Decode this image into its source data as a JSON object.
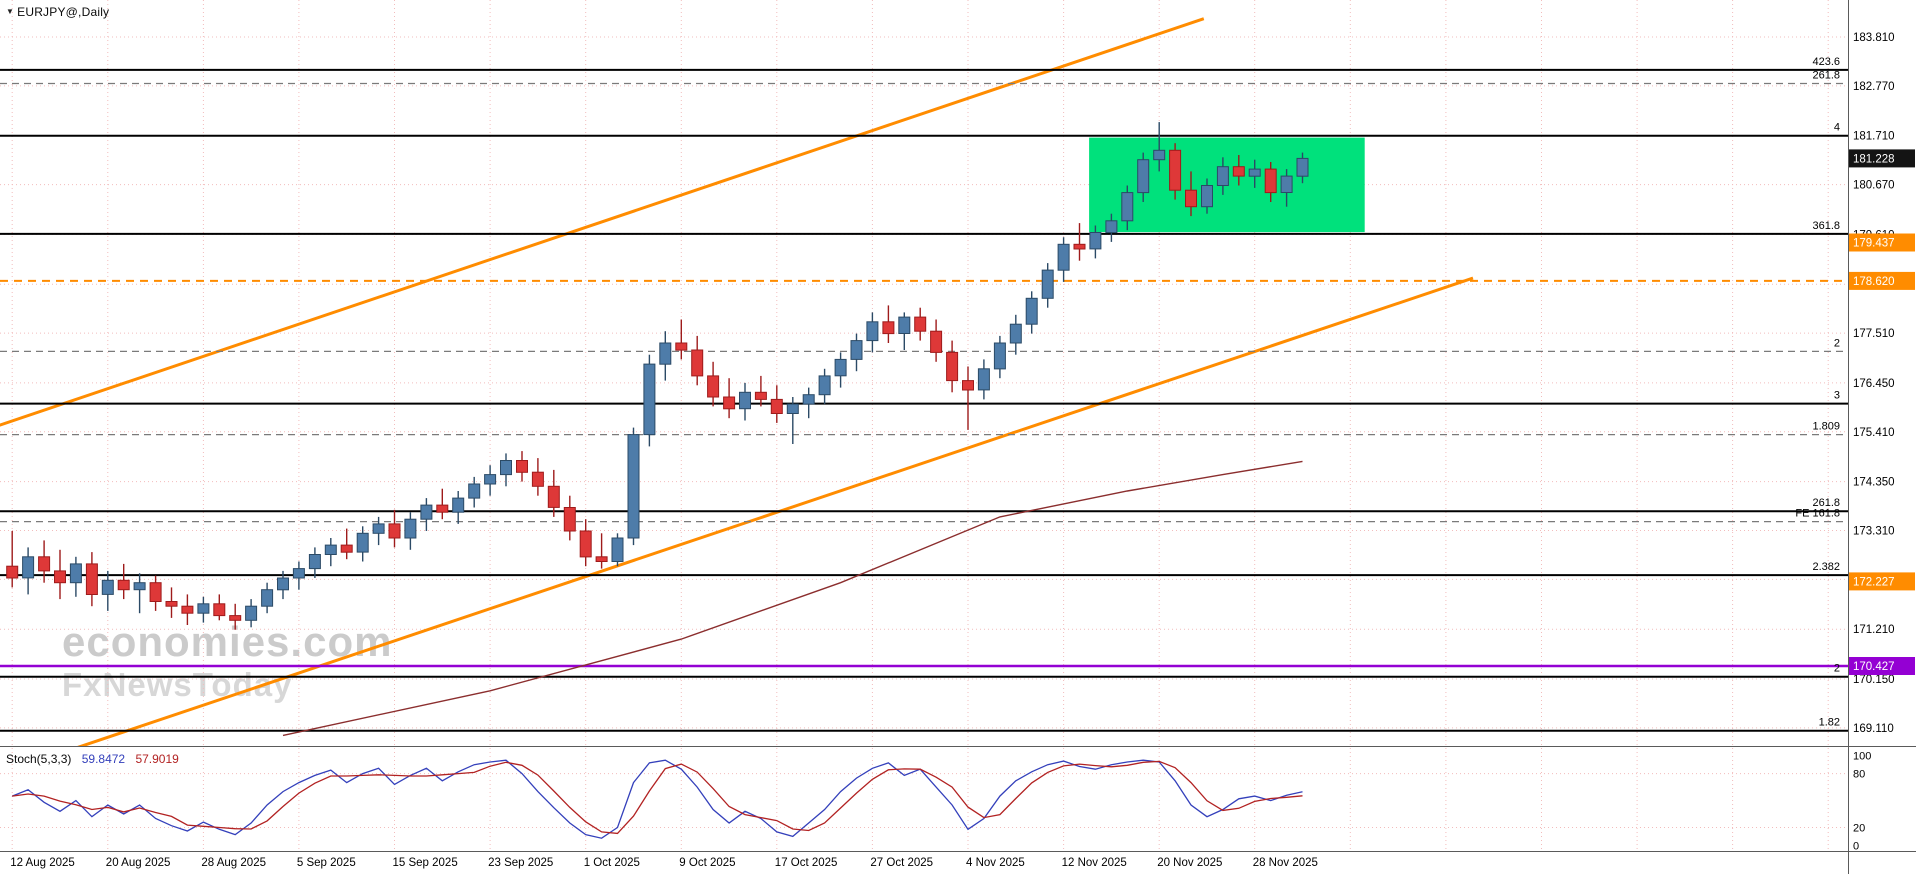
{
  "window": {
    "symbol_label": "EURJPY@,Daily"
  },
  "watermark": {
    "line1": "economies.com",
    "line2": "FxNewsToday"
  },
  "colors": {
    "grid": "#f2bcbc",
    "bull": "#4e7ca9",
    "bull_edge": "#2b4a66",
    "bear": "#de3838",
    "bear_edge": "#9e1b1b"
  },
  "price_axis": {
    "ticks": [
      {
        "label": "183.810",
        "price": 183.81
      },
      {
        "label": "182.770",
        "price": 182.77
      },
      {
        "label": "181.710",
        "price": 181.71
      },
      {
        "label": "180.670",
        "price": 180.67
      },
      {
        "label": "179.610",
        "price": 179.61
      },
      {
        "label": "177.510",
        "price": 177.51
      },
      {
        "label": "176.450",
        "price": 176.45
      },
      {
        "label": "175.410",
        "price": 175.41
      },
      {
        "label": "174.350",
        "price": 174.35
      },
      {
        "label": "173.310",
        "price": 173.31
      },
      {
        "label": "171.210",
        "price": 171.21
      },
      {
        "label": "170.150",
        "price": 170.15
      },
      {
        "label": "169.110",
        "price": 169.11
      }
    ],
    "grid_prices": [
      183.81,
      182.77,
      181.71,
      180.67,
      179.61,
      178.55,
      177.51,
      176.45,
      175.41,
      174.35,
      173.31,
      172.27,
      171.21,
      170.15,
      169.11
    ],
    "tags": [
      {
        "text": "181.228",
        "price": 181.228,
        "bg": "#141414"
      },
      {
        "text": "179.437",
        "price": 179.437,
        "bg": "#ff8c00"
      },
      {
        "text": "178.620",
        "price": 178.62,
        "bg": "#ff8c00"
      },
      {
        "text": "172.227",
        "price": 172.227,
        "bg": "#ff8c00"
      },
      {
        "text": "170.427",
        "price": 170.427,
        "bg": "#9400d3"
      }
    ]
  },
  "date_axis": {
    "labels": [
      {
        "text": "12 Aug 2025",
        "day": 0
      },
      {
        "text": "20 Aug 2025",
        "day": 6
      },
      {
        "text": "28 Aug 2025",
        "day": 12
      },
      {
        "text": "5 Sep 2025",
        "day": 18
      },
      {
        "text": "15 Sep 2025",
        "day": 24
      },
      {
        "text": "23 Sep 2025",
        "day": 30
      },
      {
        "text": "1 Oct 2025",
        "day": 36
      },
      {
        "text": "9 Oct 2025",
        "day": 42
      },
      {
        "text": "17 Oct 2025",
        "day": 48
      },
      {
        "text": "27 Oct 2025",
        "day": 54
      },
      {
        "text": "4 Nov 2025",
        "day": 60
      },
      {
        "text": "12 Nov 2025",
        "day": 66
      },
      {
        "text": "20 Nov 2025",
        "day": 72
      },
      {
        "text": "28 Nov 2025",
        "day": 78
      }
    ],
    "grid_days": [
      0,
      6,
      12,
      18,
      24,
      30,
      36,
      42,
      48,
      54,
      60,
      66,
      72,
      78,
      84,
      90,
      96,
      102,
      108,
      114
    ]
  },
  "chart_data": {
    "type": "candlestick",
    "symbol": "EURJPY@",
    "timeframe": "Daily",
    "current_price": 181.228,
    "ylim": [
      168.8,
      184.6
    ],
    "candles": [
      [
        172.55,
        173.3,
        172.1,
        172.3
      ],
      [
        172.3,
        172.95,
        171.95,
        172.75
      ],
      [
        172.75,
        173.1,
        172.2,
        172.45
      ],
      [
        172.45,
        172.9,
        171.85,
        172.2
      ],
      [
        172.2,
        172.75,
        171.9,
        172.6
      ],
      [
        172.6,
        172.85,
        171.7,
        171.95
      ],
      [
        171.95,
        172.45,
        171.6,
        172.25
      ],
      [
        172.25,
        172.6,
        171.85,
        172.05
      ],
      [
        172.05,
        172.4,
        171.55,
        172.2
      ],
      [
        172.2,
        172.35,
        171.6,
        171.8
      ],
      [
        171.8,
        172.1,
        171.45,
        171.7
      ],
      [
        171.7,
        171.95,
        171.3,
        171.55
      ],
      [
        171.55,
        171.9,
        171.35,
        171.75
      ],
      [
        171.75,
        171.95,
        171.4,
        171.5
      ],
      [
        171.5,
        171.75,
        171.2,
        171.4
      ],
      [
        171.4,
        171.85,
        171.25,
        171.7
      ],
      [
        171.7,
        172.2,
        171.55,
        172.05
      ],
      [
        172.05,
        172.45,
        171.85,
        172.3
      ],
      [
        172.3,
        172.65,
        172.05,
        172.5
      ],
      [
        172.5,
        172.95,
        172.3,
        172.8
      ],
      [
        172.8,
        173.15,
        172.55,
        173.0
      ],
      [
        173.0,
        173.35,
        172.7,
        172.85
      ],
      [
        172.85,
        173.4,
        172.65,
        173.25
      ],
      [
        173.25,
        173.6,
        173.0,
        173.45
      ],
      [
        173.45,
        173.75,
        172.95,
        173.15
      ],
      [
        173.15,
        173.7,
        172.9,
        173.55
      ],
      [
        173.55,
        174.0,
        173.3,
        173.85
      ],
      [
        173.85,
        174.2,
        173.55,
        173.7
      ],
      [
        173.7,
        174.15,
        173.45,
        174.0
      ],
      [
        174.0,
        174.45,
        173.8,
        174.3
      ],
      [
        174.3,
        174.7,
        174.05,
        174.5
      ],
      [
        174.5,
        174.95,
        174.25,
        174.8
      ],
      [
        174.8,
        175.0,
        174.35,
        174.55
      ],
      [
        174.55,
        174.85,
        174.05,
        174.25
      ],
      [
        174.25,
        174.6,
        173.6,
        173.8
      ],
      [
        173.8,
        174.05,
        173.1,
        173.3
      ],
      [
        173.3,
        173.55,
        172.55,
        172.75
      ],
      [
        172.75,
        173.25,
        172.5,
        172.65
      ],
      [
        172.65,
        173.25,
        172.55,
        173.15
      ],
      [
        173.15,
        175.5,
        173.0,
        175.35
      ],
      [
        175.35,
        177.05,
        175.1,
        176.85
      ],
      [
        176.85,
        177.55,
        176.5,
        177.3
      ],
      [
        177.3,
        177.8,
        176.95,
        177.15
      ],
      [
        177.15,
        177.45,
        176.4,
        176.6
      ],
      [
        176.6,
        176.9,
        175.95,
        176.15
      ],
      [
        176.15,
        176.55,
        175.7,
        175.9
      ],
      [
        175.9,
        176.45,
        175.65,
        176.25
      ],
      [
        176.25,
        176.6,
        175.95,
        176.1
      ],
      [
        176.1,
        176.4,
        175.6,
        175.8
      ],
      [
        175.8,
        176.15,
        175.15,
        176.0
      ],
      [
        176.0,
        176.35,
        175.7,
        176.2
      ],
      [
        176.2,
        176.75,
        176.0,
        176.6
      ],
      [
        176.6,
        177.1,
        176.35,
        176.95
      ],
      [
        176.95,
        177.5,
        176.7,
        177.35
      ],
      [
        177.35,
        177.95,
        177.1,
        177.75
      ],
      [
        177.75,
        178.1,
        177.3,
        177.5
      ],
      [
        177.5,
        177.95,
        177.15,
        177.85
      ],
      [
        177.85,
        178.05,
        177.35,
        177.55
      ],
      [
        177.55,
        177.8,
        176.9,
        177.1
      ],
      [
        177.1,
        177.35,
        176.25,
        176.5
      ],
      [
        176.5,
        176.8,
        175.45,
        176.3
      ],
      [
        176.3,
        176.95,
        176.1,
        176.75
      ],
      [
        176.75,
        177.45,
        176.55,
        177.3
      ],
      [
        177.3,
        177.9,
        177.05,
        177.7
      ],
      [
        177.7,
        178.4,
        177.5,
        178.25
      ],
      [
        178.25,
        179.0,
        178.05,
        178.85
      ],
      [
        178.85,
        179.55,
        178.6,
        179.4
      ],
      [
        179.4,
        179.85,
        179.05,
        179.3
      ],
      [
        179.3,
        179.8,
        179.1,
        179.65
      ],
      [
        179.65,
        180.05,
        179.45,
        179.9
      ],
      [
        179.9,
        180.65,
        179.7,
        180.5
      ],
      [
        180.5,
        181.35,
        180.3,
        181.2
      ],
      [
        181.2,
        182.0,
        180.95,
        181.4
      ],
      [
        181.4,
        181.55,
        180.35,
        180.55
      ],
      [
        180.55,
        180.95,
        180.0,
        180.2
      ],
      [
        180.2,
        180.8,
        180.05,
        180.65
      ],
      [
        180.65,
        181.25,
        180.45,
        181.05
      ],
      [
        181.05,
        181.3,
        180.65,
        180.85
      ],
      [
        180.85,
        181.2,
        180.6,
        181.0
      ],
      [
        181.0,
        181.15,
        180.3,
        180.5
      ],
      [
        180.5,
        181.0,
        180.2,
        180.85
      ],
      [
        180.85,
        181.35,
        180.7,
        181.228
      ]
    ],
    "levels": [
      {
        "label": "423.6",
        "price": 183.11,
        "style": "solid",
        "color": "#000000"
      },
      {
        "label": "261.8",
        "price": 182.82,
        "style": "dashed",
        "color": "#7a7a7a"
      },
      {
        "label": "4",
        "price": 181.71,
        "style": "solid",
        "color": "#000000"
      },
      {
        "label": "361.8",
        "price": 179.62,
        "style": "solid",
        "color": "#000000"
      },
      {
        "label": "2",
        "price": 177.12,
        "style": "dashed",
        "color": "#7a7a7a"
      },
      {
        "label": "3",
        "price": 176.01,
        "style": "solid",
        "color": "#000000"
      },
      {
        "label": "1.809",
        "price": 175.35,
        "style": "dashed",
        "color": "#7a7a7a"
      },
      {
        "label": "261.8",
        "price": 173.72,
        "style": "solid",
        "color": "#000000"
      },
      {
        "label": "FE 161.8",
        "price": 173.5,
        "style": "dashed",
        "color": "#7a7a7a"
      },
      {
        "label": "2.382",
        "price": 172.36,
        "style": "solid",
        "color": "#000000"
      },
      {
        "label": "2",
        "price": 170.2,
        "style": "solid",
        "color": "#000000"
      },
      {
        "label": "1.82",
        "price": 169.05,
        "style": "solid",
        "color": "#000000"
      }
    ],
    "channel_lines": [
      {
        "day1": -0.8,
        "price1": 175.55,
        "day2": 74.8,
        "price2": 184.2,
        "color": "#ff8c00",
        "width": 3
      },
      {
        "day1": 3.8,
        "price1": 168.66,
        "day2": 91.7,
        "price2": 178.68,
        "color": "#ff8c00",
        "width": 3
      }
    ],
    "hline_orange_dashed": {
      "price": 178.62,
      "color": "#ff8c00"
    },
    "hline_purple": {
      "price": 170.427,
      "color": "#9400d3"
    },
    "box": {
      "day_start": 67.6,
      "day_end": 84.9,
      "price_top": 181.67,
      "price_bottom": 179.66,
      "color": "#00e17c"
    },
    "ma_line": {
      "color": "#8b2e2e",
      "points": [
        {
          "i": 17,
          "price": 168.95
        },
        {
          "i": 30,
          "price": 169.9
        },
        {
          "i": 42,
          "price": 171.0
        },
        {
          "i": 52,
          "price": 172.2
        },
        {
          "i": 62,
          "price": 173.6
        },
        {
          "i": 70,
          "price": 174.15
        },
        {
          "i": 76,
          "price": 174.5
        },
        {
          "i": 81,
          "price": 174.78
        }
      ]
    },
    "stoch": {
      "label": "Stoch(5,3,3)",
      "k_value": "59.8472",
      "d_value": "57.9019",
      "k_color": "#3440bb",
      "d_color": "#b22222",
      "scale": [
        100,
        80,
        20,
        0
      ],
      "levels": [
        80,
        20
      ],
      "k": [
        55,
        62,
        48,
        38,
        50,
        32,
        45,
        35,
        45,
        30,
        22,
        16,
        26,
        18,
        12,
        25,
        45,
        60,
        70,
        78,
        84,
        70,
        80,
        86,
        68,
        78,
        86,
        72,
        82,
        90,
        93,
        95,
        80,
        60,
        42,
        25,
        12,
        8,
        20,
        70,
        92,
        95,
        85,
        65,
        40,
        25,
        38,
        30,
        15,
        10,
        25,
        40,
        60,
        75,
        86,
        92,
        78,
        85,
        65,
        45,
        18,
        30,
        55,
        72,
        82,
        90,
        94,
        88,
        85,
        90,
        93,
        95,
        93,
        72,
        45,
        32,
        40,
        52,
        55,
        50,
        56,
        59.85
      ]
    }
  }
}
